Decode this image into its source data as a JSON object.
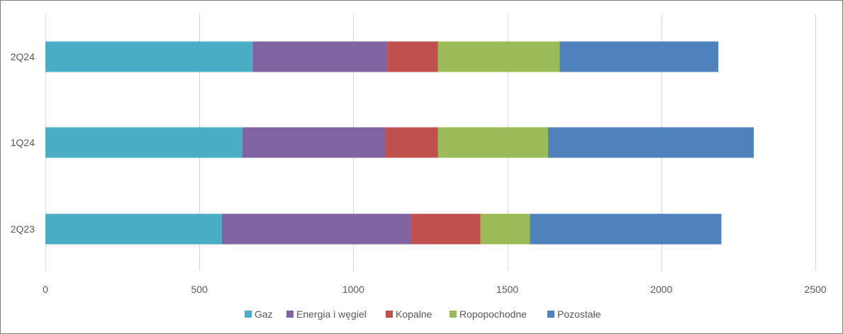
{
  "chart_data": {
    "type": "bar",
    "orientation": "horizontal",
    "stacked": true,
    "title": "",
    "xlabel": "",
    "ylabel": "",
    "categories": [
      "2Q24",
      "1Q24",
      "2Q23"
    ],
    "xlim": [
      0,
      2500
    ],
    "x_ticks": [
      0,
      500,
      1000,
      1500,
      2000,
      2500
    ],
    "grid": "vertical",
    "legend_position": "bottom",
    "series": [
      {
        "name": "Gaz",
        "color": "#4bacc6",
        "values": [
          673,
          640,
          573
        ]
      },
      {
        "name": "Energia i węgiel",
        "color": "#8064a2",
        "values": [
          437,
          465,
          615
        ]
      },
      {
        "name": "Kopalne",
        "color": "#c0504d",
        "values": [
          165,
          170,
          225
        ]
      },
      {
        "name": "Ropopochodne",
        "color": "#9bbb59",
        "values": [
          395,
          357,
          160
        ]
      },
      {
        "name": "Pozostałe",
        "color": "#4f81bd",
        "values": [
          515,
          668,
          622
        ]
      }
    ]
  }
}
